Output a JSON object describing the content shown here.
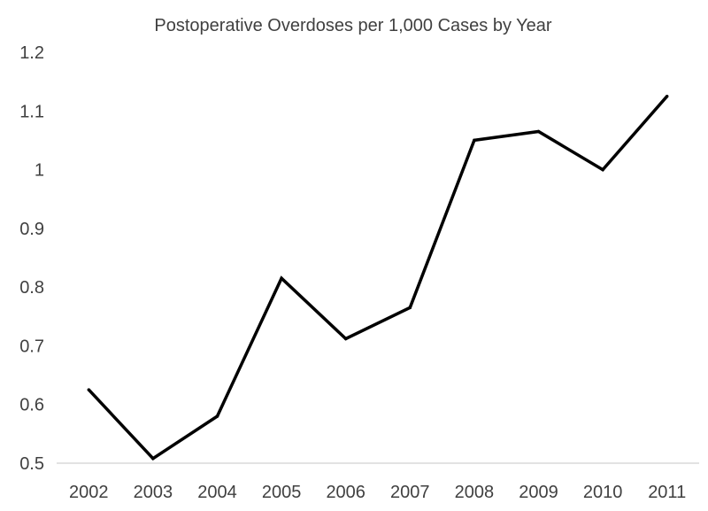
{
  "chart_data": {
    "type": "line",
    "title": "Postoperative Overdoses per 1,000 Cases by Year",
    "xlabel": "",
    "ylabel": "",
    "categories": [
      "2002",
      "2003",
      "2004",
      "2005",
      "2006",
      "2007",
      "2008",
      "2009",
      "2010",
      "2011"
    ],
    "series": [
      {
        "values": [
          0.625,
          0.508,
          0.58,
          0.815,
          0.712,
          0.765,
          1.05,
          1.065,
          1.0,
          1.125
        ]
      }
    ],
    "y_ticks": [
      "0.5",
      "0.6",
      "0.7",
      "0.8",
      "0.9",
      "1",
      "1.1",
      "1.2"
    ],
    "ylim": [
      0.5,
      1.2
    ],
    "grid": false,
    "legend": "none",
    "colors": {
      "line": "#000000",
      "axis": "#d9d9d9",
      "text": "#404040"
    }
  }
}
